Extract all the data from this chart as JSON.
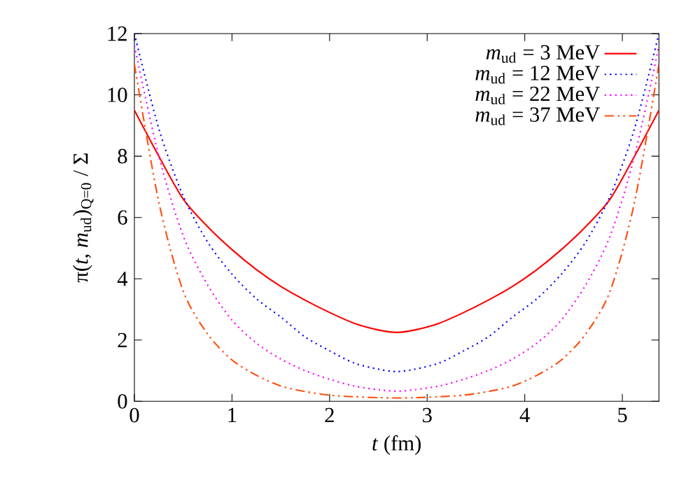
{
  "chart_data": {
    "type": "line",
    "xlabel": "*t* (fm)",
    "ylabel": "π(*t*, *m*$_{ud}$)$_{Q=0}$ / Σ",
    "x": [
      0,
      0.25,
      0.5,
      0.75,
      1,
      1.25,
      1.5,
      1.75,
      2,
      2.25,
      2.5,
      2.6875,
      2.875,
      3.125,
      3.375,
      3.625,
      3.875,
      4.125,
      4.375,
      4.625,
      4.875,
      5.125,
      5.375
    ],
    "series": [
      {
        "name": "*m*$_{ud}$ =   3 MeV",
        "color": "#ff0000",
        "line_style": "solid",
        "values": [
          9.5,
          8.0,
          6.6,
          5.7,
          4.95,
          4.3,
          3.75,
          3.3,
          2.9,
          2.55,
          2.33,
          2.25,
          2.33,
          2.55,
          2.9,
          3.3,
          3.75,
          4.3,
          4.95,
          5.7,
          6.6,
          8.0,
          9.5
        ]
      },
      {
        "name": "*m*$_{ud}$ = 12 MeV",
        "color": "#0000ff",
        "line_style": "dotted",
        "values": [
          12,
          8.9,
          6.7,
          5.2,
          4.15,
          3.35,
          2.75,
          2.1,
          1.65,
          1.25,
          1.05,
          0.97,
          1.05,
          1.25,
          1.65,
          2.1,
          2.75,
          3.35,
          4.15,
          5.2,
          6.7,
          8.9,
          12
        ]
      },
      {
        "name": "*m*$_{ud}$ = 22 MeV",
        "color": "#ff00ff",
        "line_style": "dotted",
        "values": [
          11.6,
          8.0,
          5.4,
          3.8,
          2.65,
          1.9,
          1.38,
          1.0,
          0.72,
          0.5,
          0.38,
          0.33,
          0.38,
          0.5,
          0.72,
          1.0,
          1.38,
          1.9,
          2.65,
          3.8,
          5.4,
          8.0,
          11.6
        ]
      },
      {
        "name": "*m*$_{ud}$ = 37 MeV",
        "color": "#ff5010",
        "line_style": "dashdotted",
        "values": [
          11.0,
          6.5,
          3.6,
          2.2,
          1.35,
          0.85,
          0.5,
          0.32,
          0.2,
          0.15,
          0.12,
          0.11,
          0.12,
          0.15,
          0.2,
          0.32,
          0.5,
          0.85,
          1.35,
          2.2,
          3.6,
          6.5,
          11.0
        ]
      }
    ],
    "xlim": [
      0,
      5.375
    ],
    "ylim": [
      0,
      12
    ],
    "xticks": [
      0,
      1,
      2,
      3,
      4,
      5
    ],
    "yticks": [
      0,
      2,
      4,
      6,
      8,
      10,
      12
    ],
    "grid": false,
    "legend": "top right",
    "marker": "none"
  }
}
